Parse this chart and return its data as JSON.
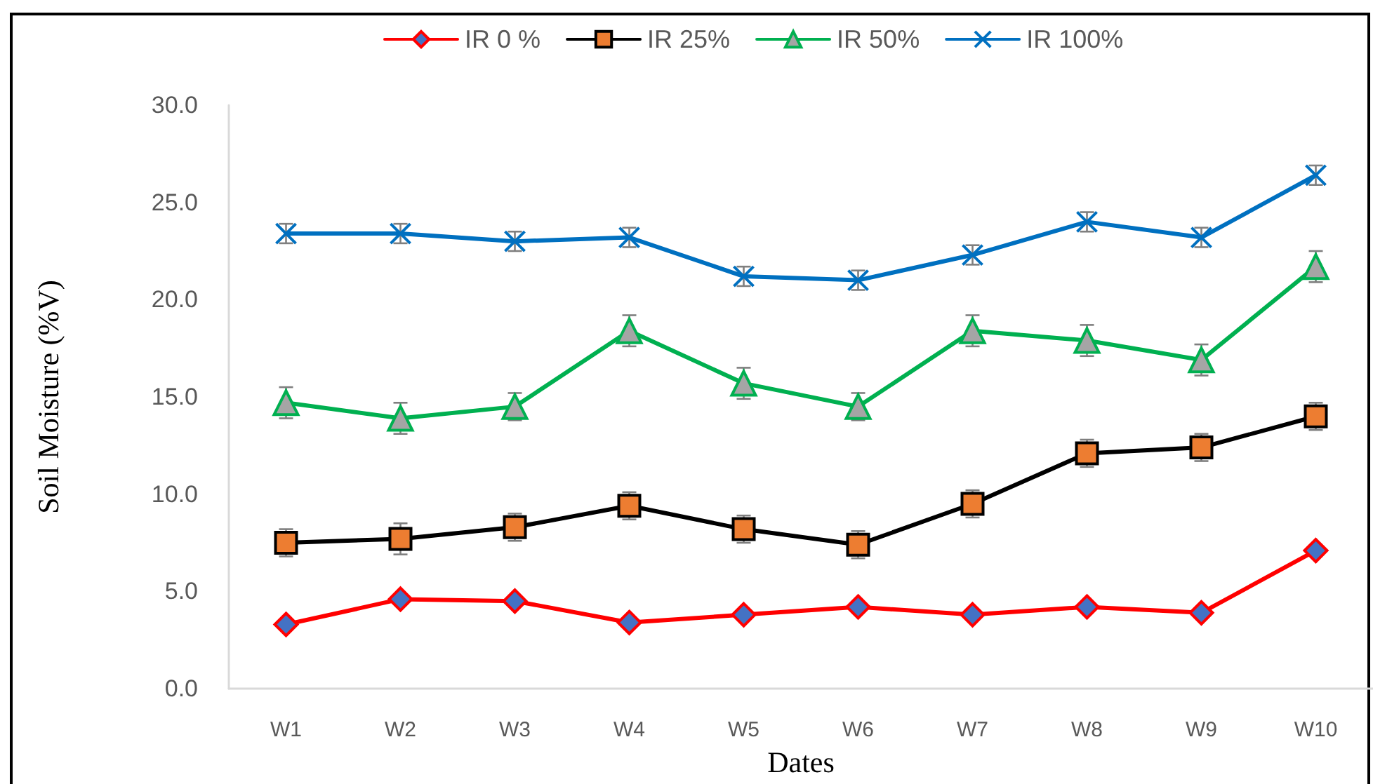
{
  "chart_data": {
    "type": "line",
    "xlabel": "Dates",
    "ylabel": "Soil Moisture (%V)",
    "categories": [
      "W1",
      "W2",
      "W3",
      "W4",
      "W5",
      "W6",
      "W7",
      "W8",
      "W9",
      "W10"
    ],
    "ylim": [
      0,
      30
    ],
    "yticks": [
      {
        "value": 0,
        "label": "0.0"
      },
      {
        "value": 5,
        "label": "5.0"
      },
      {
        "value": 10,
        "label": "10.0"
      },
      {
        "value": 15,
        "label": "15.0"
      },
      {
        "value": 20,
        "label": "20.0"
      },
      {
        "value": 25,
        "label": "25.0"
      },
      {
        "value": 30,
        "label": "30.0"
      }
    ],
    "grid": false,
    "legend": "top",
    "line_style": "solid",
    "series": [
      {
        "name": "IR 0 %",
        "color": "#ff0000",
        "marker": "diamond",
        "values": [
          3.3,
          4.6,
          4.5,
          3.4,
          3.8,
          4.2,
          3.8,
          4.2,
          3.9,
          7.1
        ]
      },
      {
        "name": "IR 25%",
        "color": "#000000",
        "marker": "square",
        "values": [
          7.5,
          7.7,
          8.3,
          9.4,
          8.2,
          7.4,
          9.5,
          12.1,
          12.4,
          14.0
        ],
        "errors": [
          0.7,
          0.8,
          0.7,
          0.7,
          0.7,
          0.7,
          0.7,
          0.7,
          0.7,
          0.7
        ]
      },
      {
        "name": "IR 50%",
        "color": "#00b050",
        "marker": "triangle",
        "values": [
          14.7,
          13.9,
          14.5,
          18.4,
          15.7,
          14.5,
          18.4,
          17.9,
          16.9,
          21.7
        ],
        "errors": [
          0.8,
          0.8,
          0.7,
          0.8,
          0.8,
          0.7,
          0.8,
          0.8,
          0.8,
          0.8
        ]
      },
      {
        "name": "IR 100%",
        "color": "#0070c0",
        "marker": "cross",
        "values": [
          23.4,
          23.4,
          23.0,
          23.2,
          21.2,
          21.0,
          22.3,
          24.0,
          23.2,
          26.4
        ],
        "errors": [
          0.5,
          0.5,
          0.5,
          0.5,
          0.5,
          0.5,
          0.5,
          0.5,
          0.5,
          0.5
        ]
      }
    ]
  }
}
